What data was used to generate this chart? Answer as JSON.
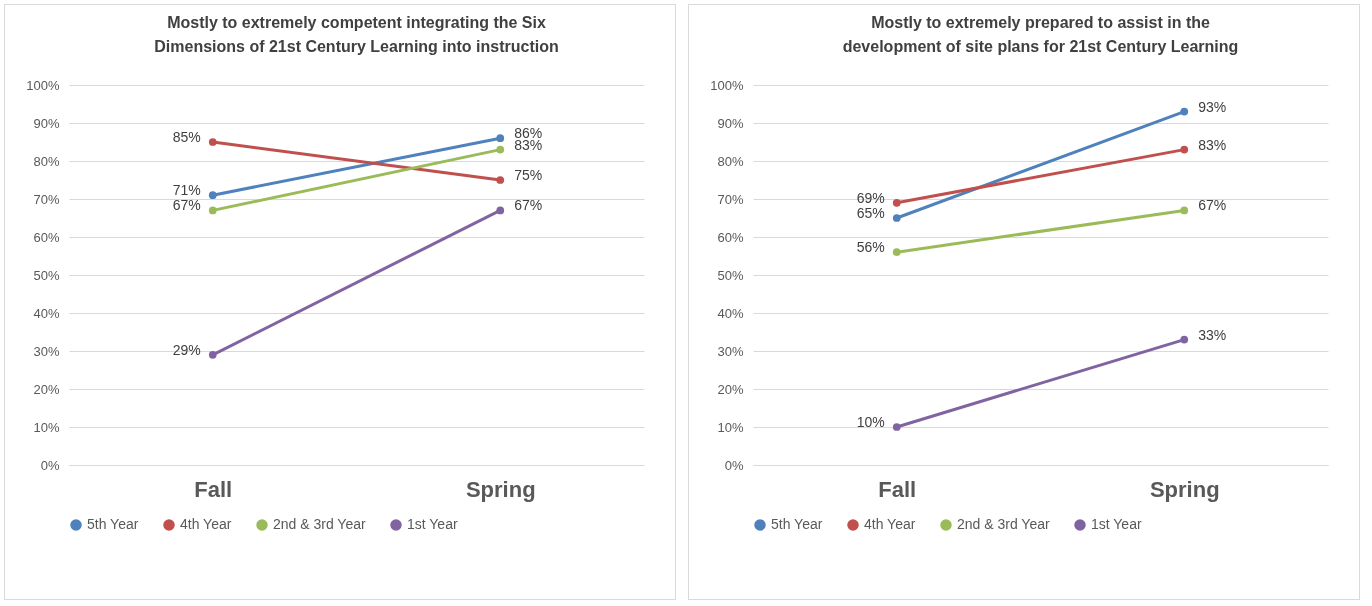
{
  "chart_data": [
    {
      "type": "line",
      "title": "Mostly to extremely competent integrating the Six Dimensions of 21st Century Learning into instruction",
      "categories": [
        "Fall",
        "Spring"
      ],
      "ylim": [
        0,
        100
      ],
      "yticks": [
        {
          "value": 0,
          "label": "0%"
        },
        {
          "value": 10,
          "label": "10%"
        },
        {
          "value": 20,
          "label": "20%"
        },
        {
          "value": 30,
          "label": "30%"
        },
        {
          "value": 40,
          "label": "40%"
        },
        {
          "value": 50,
          "label": "50%"
        },
        {
          "value": 60,
          "label": "60%"
        },
        {
          "value": 70,
          "label": "70%"
        },
        {
          "value": 80,
          "label": "80%"
        },
        {
          "value": 90,
          "label": "90%"
        },
        {
          "value": 100,
          "label": "100%"
        }
      ],
      "grid": "y",
      "legend": "bottom",
      "marker": "circle",
      "series": [
        {
          "name": "5th Year",
          "color": "#4f81bd",
          "values": [
            71,
            86
          ],
          "value_labels": [
            "71%",
            "86%"
          ]
        },
        {
          "name": "4th Year",
          "color": "#c0504d",
          "values": [
            85,
            75
          ],
          "value_labels": [
            "85%",
            "75%"
          ]
        },
        {
          "name": "2nd & 3rd Year",
          "color": "#9bbb59",
          "values": [
            67,
            83
          ],
          "value_labels": [
            "67%",
            "83%"
          ]
        },
        {
          "name": "1st Year",
          "color": "#8064a2",
          "values": [
            29,
            67
          ],
          "value_labels": [
            "29%",
            "67%"
          ]
        }
      ]
    },
    {
      "type": "line",
      "title": "Mostly to extremely prepared to assist in the development of site plans for 21st Century Learning",
      "categories": [
        "Fall",
        "Spring"
      ],
      "ylim": [
        0,
        100
      ],
      "yticks": [
        {
          "value": 0,
          "label": "0%"
        },
        {
          "value": 10,
          "label": "10%"
        },
        {
          "value": 20,
          "label": "20%"
        },
        {
          "value": 30,
          "label": "30%"
        },
        {
          "value": 40,
          "label": "40%"
        },
        {
          "value": 50,
          "label": "50%"
        },
        {
          "value": 60,
          "label": "60%"
        },
        {
          "value": 70,
          "label": "70%"
        },
        {
          "value": 80,
          "label": "80%"
        },
        {
          "value": 90,
          "label": "90%"
        },
        {
          "value": 100,
          "label": "100%"
        }
      ],
      "grid": "y",
      "legend": "bottom",
      "marker": "circle",
      "series": [
        {
          "name": "5th Year",
          "color": "#4f81bd",
          "values": [
            65,
            93
          ],
          "value_labels": [
            "65%",
            "93%"
          ]
        },
        {
          "name": "4th Year",
          "color": "#c0504d",
          "values": [
            69,
            83
          ],
          "value_labels": [
            "69%",
            "83%"
          ]
        },
        {
          "name": "2nd & 3rd Year",
          "color": "#9bbb59",
          "values": [
            56,
            67
          ],
          "value_labels": [
            "56%",
            "67%"
          ]
        },
        {
          "name": "1st Year",
          "color": "#8064a2",
          "values": [
            10,
            33
          ],
          "value_labels": [
            "10%",
            "33%"
          ]
        }
      ]
    }
  ]
}
